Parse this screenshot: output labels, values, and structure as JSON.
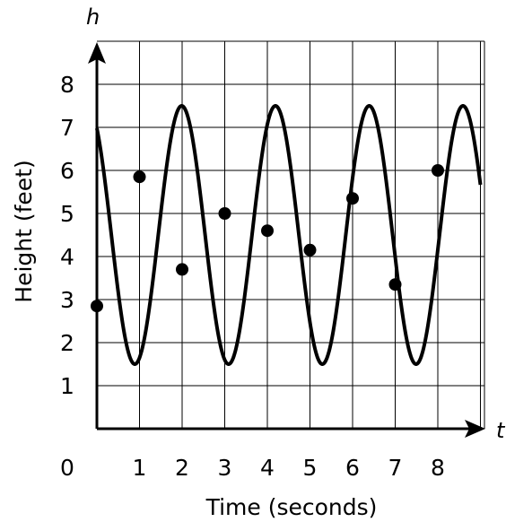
{
  "chart_data": {
    "type": "line",
    "title": "",
    "xlabel": "Time (seconds)",
    "ylabel": "Height (feet)",
    "x_var": "t",
    "y_var": "h",
    "origin_label": "0",
    "xlim": [
      0,
      9
    ],
    "ylim": [
      0,
      8
    ],
    "x_ticks": [
      1,
      2,
      3,
      4,
      5,
      6,
      7,
      8
    ],
    "y_ticks": [
      1,
      2,
      3,
      4,
      5,
      6,
      7,
      8
    ],
    "grid": true,
    "curve": {
      "midline": 4.5,
      "amplitude": 3,
      "period": 2.2,
      "min": 1.5,
      "max": 7.5,
      "x_range": [
        0,
        9
      ]
    },
    "points": [
      {
        "x": 0,
        "y": 2.85
      },
      {
        "x": 1,
        "y": 5.85
      },
      {
        "x": 2,
        "y": 3.7
      },
      {
        "x": 3,
        "y": 5.0
      },
      {
        "x": 4,
        "y": 4.6
      },
      {
        "x": 5,
        "y": 4.15
      },
      {
        "x": 6,
        "y": 5.35
      },
      {
        "x": 7,
        "y": 3.35
      },
      {
        "x": 8,
        "y": 6.0
      }
    ],
    "colors": {
      "line": "#000000",
      "grid": "#000000",
      "point": "#000000"
    }
  }
}
